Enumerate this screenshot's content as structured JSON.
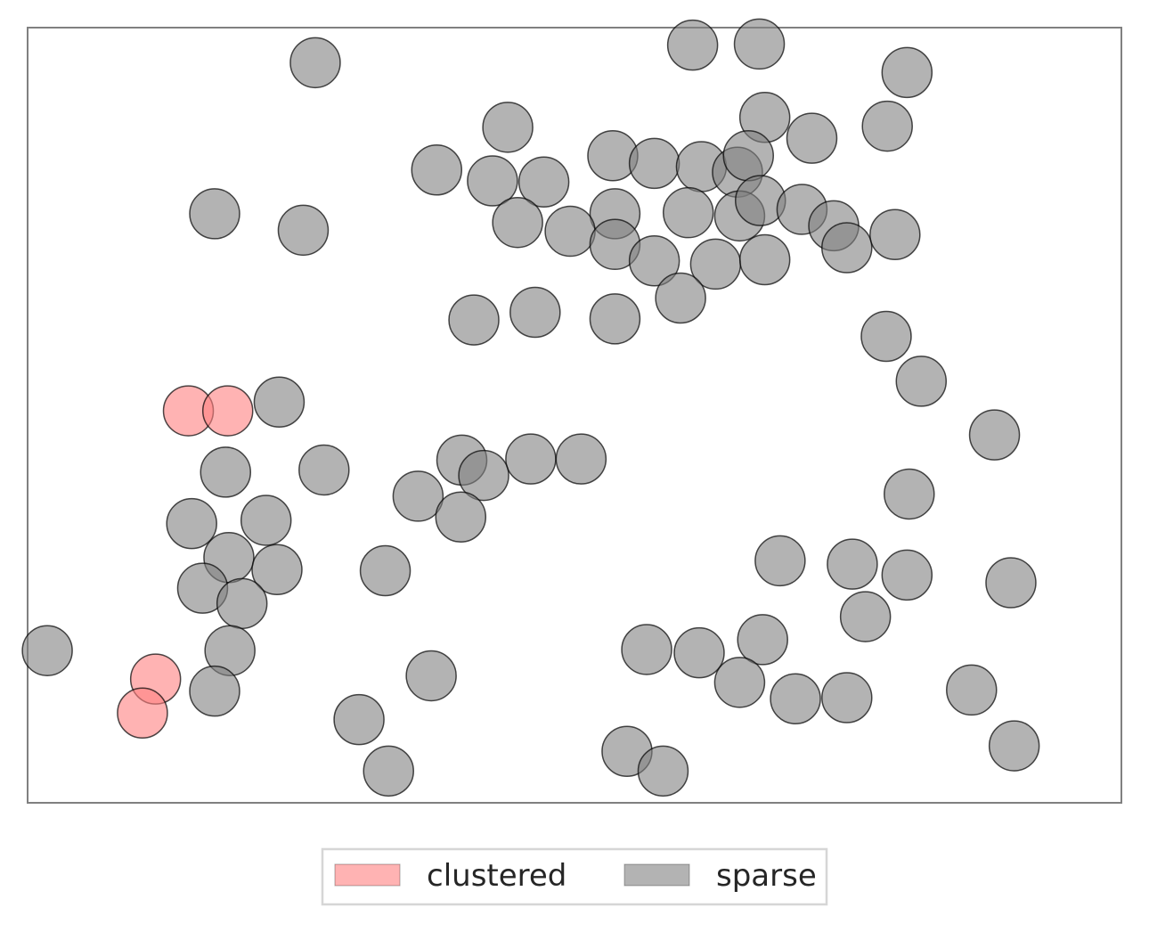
{
  "chart_data": {
    "type": "scatter",
    "title": "",
    "xlabel": "",
    "ylabel": "",
    "xlim": [
      0,
      1000
    ],
    "ylim": [
      0,
      708
    ],
    "x_ticks": [],
    "y_ticks": [],
    "grid": false,
    "legend": {
      "placement": "bottom-center",
      "columns": 2
    },
    "series": [
      {
        "name": "clustered",
        "color": "#ff8080",
        "marker": "circle",
        "points": [
          {
            "x": 147,
            "y": 358
          },
          {
            "x": 183,
            "y": 358
          },
          {
            "x": 117,
            "y": 113
          },
          {
            "x": 105,
            "y": 82
          }
        ]
      },
      {
        "name": "sparse",
        "color": "#808080",
        "marker": "circle",
        "points": [
          {
            "x": 263,
            "y": 676
          },
          {
            "x": 608,
            "y": 692
          },
          {
            "x": 669,
            "y": 693
          },
          {
            "x": 804,
            "y": 667
          },
          {
            "x": 439,
            "y": 617
          },
          {
            "x": 674,
            "y": 626
          },
          {
            "x": 717,
            "y": 607
          },
          {
            "x": 786,
            "y": 618
          },
          {
            "x": 374,
            "y": 578
          },
          {
            "x": 425,
            "y": 568
          },
          {
            "x": 472,
            "y": 567
          },
          {
            "x": 535,
            "y": 591
          },
          {
            "x": 573,
            "y": 584
          },
          {
            "x": 616,
            "y": 581
          },
          {
            "x": 649,
            "y": 576
          },
          {
            "x": 659,
            "y": 591
          },
          {
            "x": 171,
            "y": 538
          },
          {
            "x": 252,
            "y": 523
          },
          {
            "x": 537,
            "y": 538
          },
          {
            "x": 604,
            "y": 539
          },
          {
            "x": 651,
            "y": 536
          },
          {
            "x": 670,
            "y": 550
          },
          {
            "x": 708,
            "y": 542
          },
          {
            "x": 737,
            "y": 527
          },
          {
            "x": 448,
            "y": 530
          },
          {
            "x": 496,
            "y": 522
          },
          {
            "x": 537,
            "y": 510
          },
          {
            "x": 573,
            "y": 495
          },
          {
            "x": 629,
            "y": 492
          },
          {
            "x": 674,
            "y": 496
          },
          {
            "x": 749,
            "y": 507
          },
          {
            "x": 793,
            "y": 519
          },
          {
            "x": 464,
            "y": 448
          },
          {
            "x": 408,
            "y": 441
          },
          {
            "x": 537,
            "y": 442
          },
          {
            "x": 597,
            "y": 461
          },
          {
            "x": 785,
            "y": 426
          },
          {
            "x": 817,
            "y": 385
          },
          {
            "x": 884,
            "y": 336
          },
          {
            "x": 230,
            "y": 366
          },
          {
            "x": 181,
            "y": 302
          },
          {
            "x": 271,
            "y": 304
          },
          {
            "x": 397,
            "y": 313
          },
          {
            "x": 460,
            "y": 314
          },
          {
            "x": 506,
            "y": 314
          },
          {
            "x": 357,
            "y": 280
          },
          {
            "x": 417,
            "y": 299
          },
          {
            "x": 396,
            "y": 261
          },
          {
            "x": 806,
            "y": 282
          },
          {
            "x": 150,
            "y": 255
          },
          {
            "x": 218,
            "y": 258
          },
          {
            "x": 184,
            "y": 224
          },
          {
            "x": 228,
            "y": 213
          },
          {
            "x": 160,
            "y": 196
          },
          {
            "x": 196,
            "y": 182
          },
          {
            "x": 327,
            "y": 212
          },
          {
            "x": 804,
            "y": 208
          },
          {
            "x": 754,
            "y": 218
          },
          {
            "x": 688,
            "y": 221
          },
          {
            "x": 766,
            "y": 170
          },
          {
            "x": 899,
            "y": 201
          },
          {
            "x": 672,
            "y": 149
          },
          {
            "x": 185,
            "y": 139
          },
          {
            "x": 18,
            "y": 139
          },
          {
            "x": 171,
            "y": 102
          },
          {
            "x": 369,
            "y": 116
          },
          {
            "x": 614,
            "y": 137
          },
          {
            "x": 566,
            "y": 140
          },
          {
            "x": 651,
            "y": 110
          },
          {
            "x": 702,
            "y": 95
          },
          {
            "x": 749,
            "y": 96
          },
          {
            "x": 863,
            "y": 103
          },
          {
            "x": 902,
            "y": 52
          },
          {
            "x": 303,
            "y": 76
          },
          {
            "x": 330,
            "y": 29
          },
          {
            "x": 548,
            "y": 47
          },
          {
            "x": 581,
            "y": 29
          }
        ]
      }
    ]
  }
}
